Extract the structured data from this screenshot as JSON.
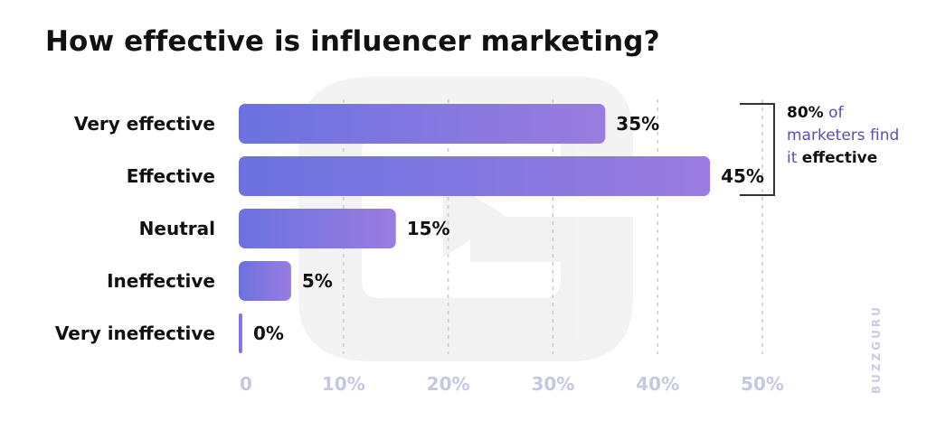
{
  "title": "How effective is influencer marketing?",
  "annotation": {
    "highlight": "80%",
    "part1": "of marketers find it",
    "highlight2": "effective"
  },
  "brand": "BUZZGURU",
  "colors": {
    "bar_start": "#6b72e0",
    "bar_end": "#9a7ce0",
    "gridline": "#c9c9dc",
    "tick": "#c5c8e3",
    "bracket": "#333333"
  },
  "chart_data": {
    "type": "bar",
    "orientation": "horizontal",
    "categories": [
      "Very effective",
      "Effective",
      "Neutral",
      "Ineffective",
      "Very ineffective"
    ],
    "values": [
      35,
      45,
      15,
      5,
      0
    ],
    "data_labels": [
      "35%",
      "45%",
      "15%",
      "5%",
      "0%"
    ],
    "x_ticks": [
      "0",
      "10%",
      "20%",
      "30%",
      "40%",
      "50%"
    ],
    "xlim": [
      0,
      50
    ],
    "grid": true
  }
}
